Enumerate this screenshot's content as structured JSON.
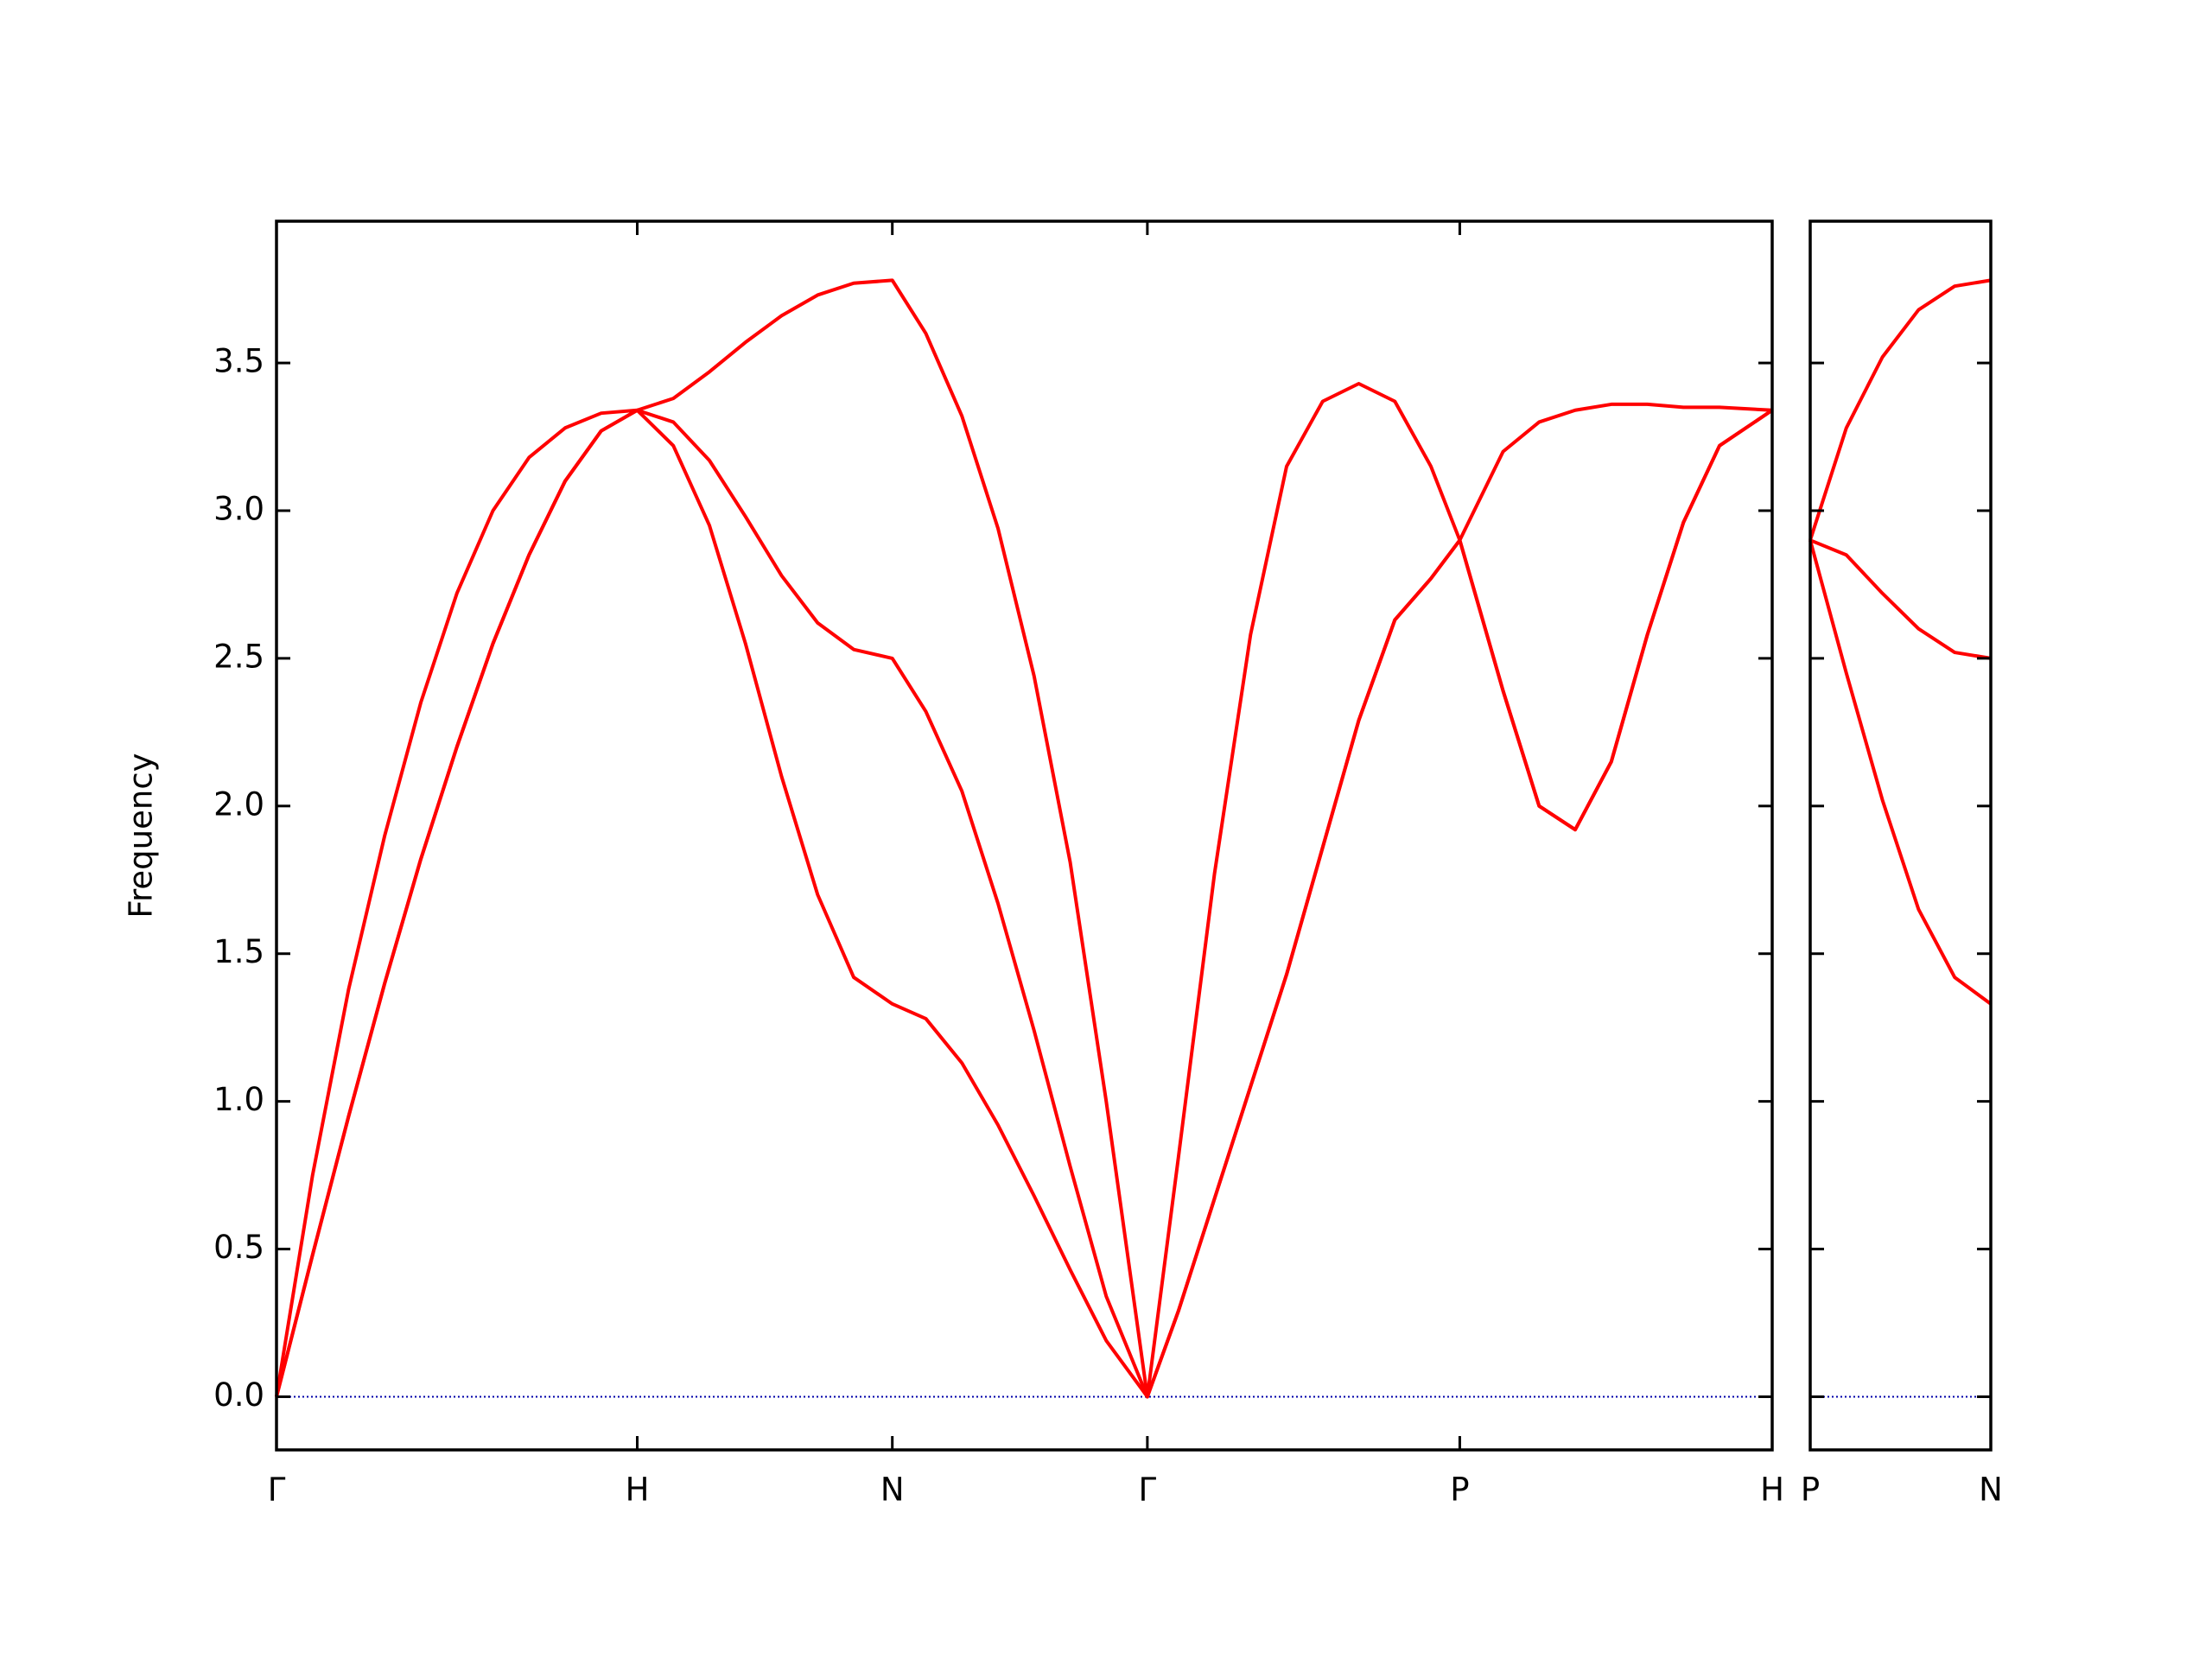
{
  "chart_data": [
    {
      "type": "line",
      "y_label": "Frequency",
      "x": [
        0,
        0.1,
        0.2,
        0.3,
        0.4,
        0.5,
        0.6,
        0.7,
        0.8,
        0.9,
        1.0,
        1.1,
        1.2,
        1.3,
        1.4,
        1.5,
        1.6,
        1.707,
        1.8,
        1.9,
        2.0,
        2.1,
        2.2,
        2.3,
        2.414,
        2.5,
        2.6,
        2.7,
        2.8,
        2.9,
        3.0,
        3.1,
        3.2,
        3.28,
        3.4,
        3.5,
        3.6,
        3.7,
        3.8,
        3.9,
        4.0,
        4.146
      ],
      "series": [
        {
          "color": "#ff0000",
          "values": [
            0,
            0.75,
            1.38,
            1.9,
            2.35,
            2.72,
            3.0,
            3.18,
            3.28,
            3.33,
            3.34,
            3.38,
            3.47,
            3.57,
            3.66,
            3.73,
            3.77,
            3.78,
            3.6,
            3.32,
            2.94,
            2.44,
            1.81,
            1.0,
            0,
            0.81,
            1.77,
            2.58,
            3.15,
            3.37,
            3.43,
            3.37,
            3.15,
            2.9,
            2.39,
            2.0,
            1.92,
            2.15,
            2.58,
            2.96,
            3.22,
            3.34
          ]
        },
        {
          "color": "#ff0000",
          "values": [
            0,
            0.48,
            0.95,
            1.4,
            1.82,
            2.2,
            2.55,
            2.85,
            3.1,
            3.27,
            3.34,
            3.3,
            3.17,
            2.98,
            2.78,
            2.62,
            2.53,
            2.5,
            2.32,
            2.05,
            1.67,
            1.24,
            0.78,
            0.34,
            0,
            0.29,
            0.67,
            1.05,
            1.43,
            1.86,
            2.29,
            2.63,
            2.77,
            2.9,
            3.2,
            3.3,
            3.34,
            3.36,
            3.36,
            3.35,
            3.35,
            3.34
          ]
        },
        {
          "color": "#ff0000",
          "values": [
            0,
            0.48,
            0.95,
            1.4,
            1.82,
            2.2,
            2.55,
            2.85,
            3.1,
            3.27,
            3.34,
            3.22,
            2.95,
            2.55,
            2.1,
            1.7,
            1.42,
            1.33,
            1.28,
            1.13,
            0.92,
            0.68,
            0.43,
            0.19,
            0,
            0.29,
            0.67,
            1.05,
            1.43,
            1.86,
            2.29,
            2.63,
            2.77,
            2.9,
            2.39,
            2.0,
            1.92,
            2.15,
            2.58,
            2.96,
            3.22,
            3.34
          ]
        }
      ],
      "xlim": [
        0,
        4.146
      ],
      "xticks": [
        {
          "value": 0,
          "label": "Γ"
        },
        {
          "value": 1,
          "label": "H"
        },
        {
          "value": 1.707,
          "label": "N"
        },
        {
          "value": 2.414,
          "label": "Γ"
        },
        {
          "value": 3.28,
          "label": "P"
        },
        {
          "value": 4.146,
          "label": "H"
        }
      ],
      "ylim": [
        -0.18,
        3.98
      ],
      "yticks": [
        {
          "value": 0,
          "label": "0.0"
        },
        0.5,
        {
          "value": 1,
          "label": "1.0"
        },
        1.5,
        {
          "value": 2,
          "label": "2.0"
        },
        2.5,
        {
          "value": 3,
          "label": "3.0"
        },
        3.5
      ]
    },
    {
      "type": "line",
      "x": [
        0,
        0.1,
        0.2,
        0.3,
        0.4,
        0.5
      ],
      "series": [
        {
          "color": "#ff0000",
          "values": [
            2.9,
            3.28,
            3.52,
            3.68,
            3.76,
            3.78
          ]
        },
        {
          "color": "#ff0000",
          "values": [
            2.9,
            2.85,
            2.72,
            2.6,
            2.52,
            2.5
          ]
        },
        {
          "color": "#ff0000",
          "values": [
            2.9,
            2.45,
            2.02,
            1.65,
            1.42,
            1.33
          ]
        }
      ],
      "xlim": [
        0,
        0.5
      ],
      "xticks": [
        {
          "value": 0,
          "label": "P"
        },
        {
          "value": 0.5,
          "label": "N"
        }
      ],
      "ylim": [
        -0.18,
        3.98
      ]
    }
  ]
}
